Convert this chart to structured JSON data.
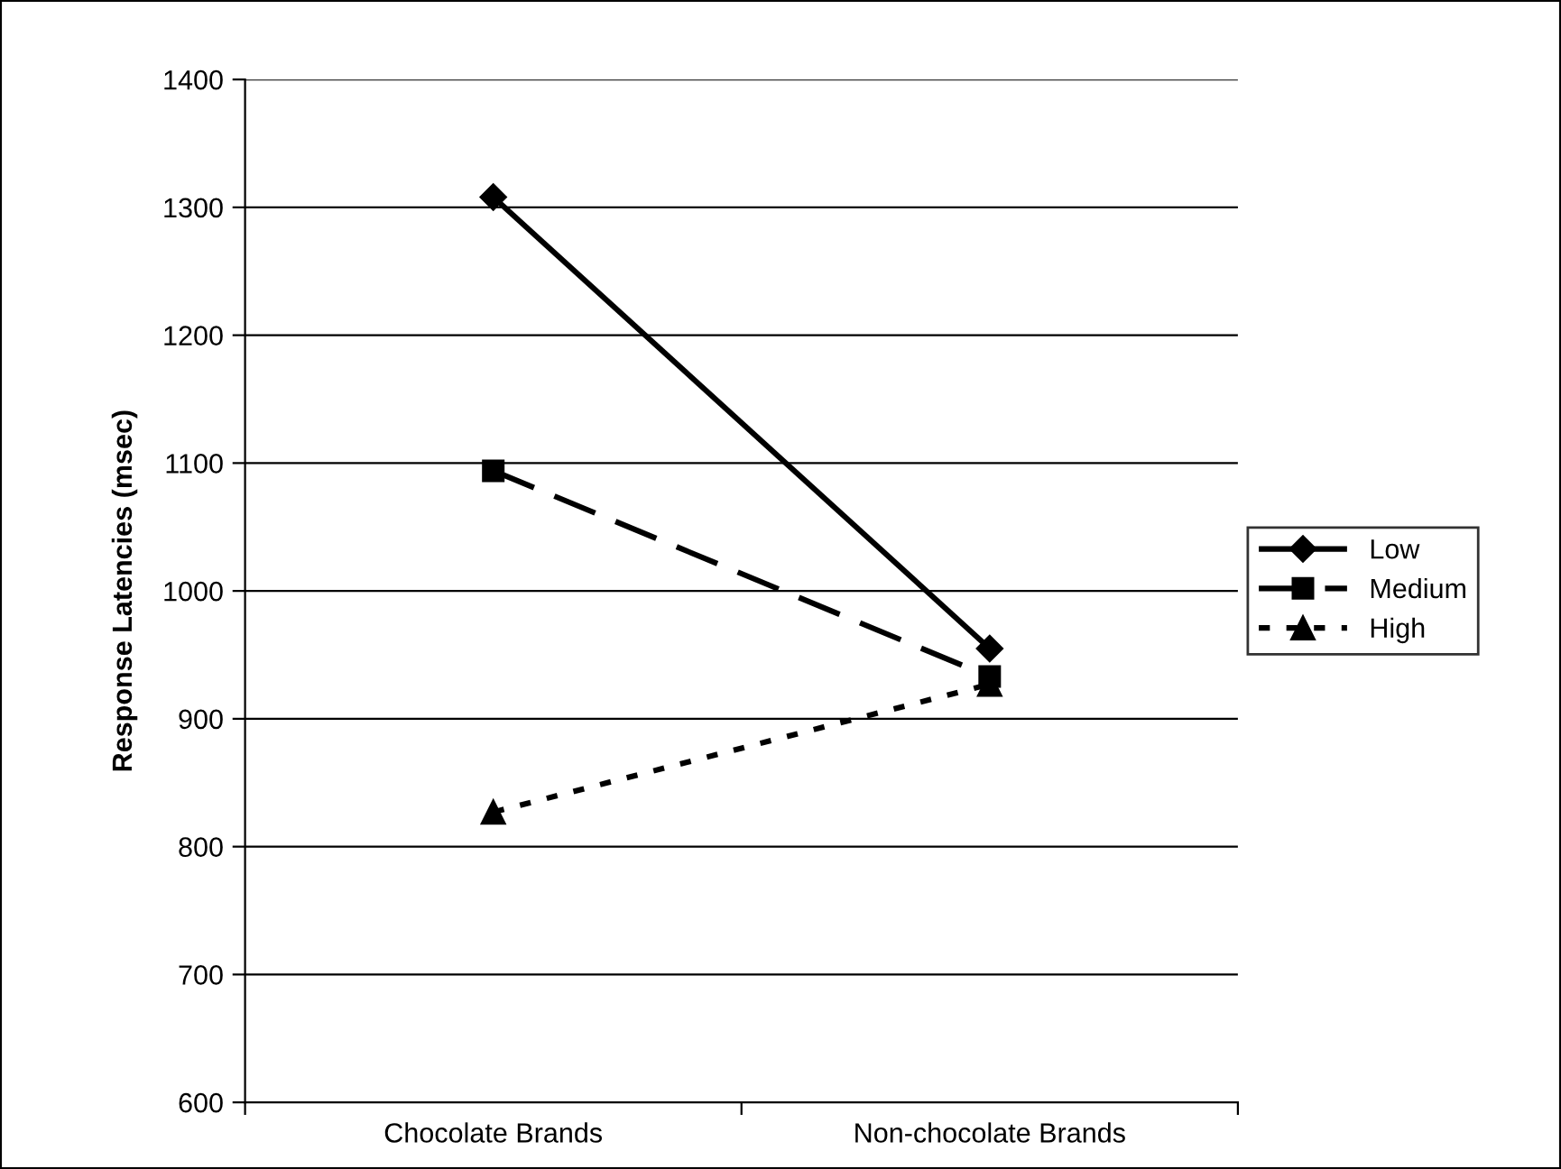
{
  "chart_data": {
    "type": "line",
    "ylabel": "Response Latencies (msec)",
    "categories": [
      "Chocolate Brands",
      "Non-chocolate Brands"
    ],
    "series": [
      {
        "name": "Low",
        "color": "#000000",
        "values": [
          1308,
          955
        ],
        "marker": "diamond",
        "line_style": "solid"
      },
      {
        "name": "Medium",
        "color": "#000000",
        "values": [
          1094,
          933
        ],
        "marker": "square",
        "line_style": "dashed"
      },
      {
        "name": "High",
        "color": "#000000",
        "values": [
          827,
          927
        ],
        "marker": "triangle",
        "line_style": "dotted"
      }
    ],
    "ylim": [
      600,
      1400
    ],
    "yticks": [
      600,
      700,
      800,
      900,
      1000,
      1100,
      1200,
      1300,
      1400
    ],
    "grid": "y",
    "legend": "right"
  }
}
